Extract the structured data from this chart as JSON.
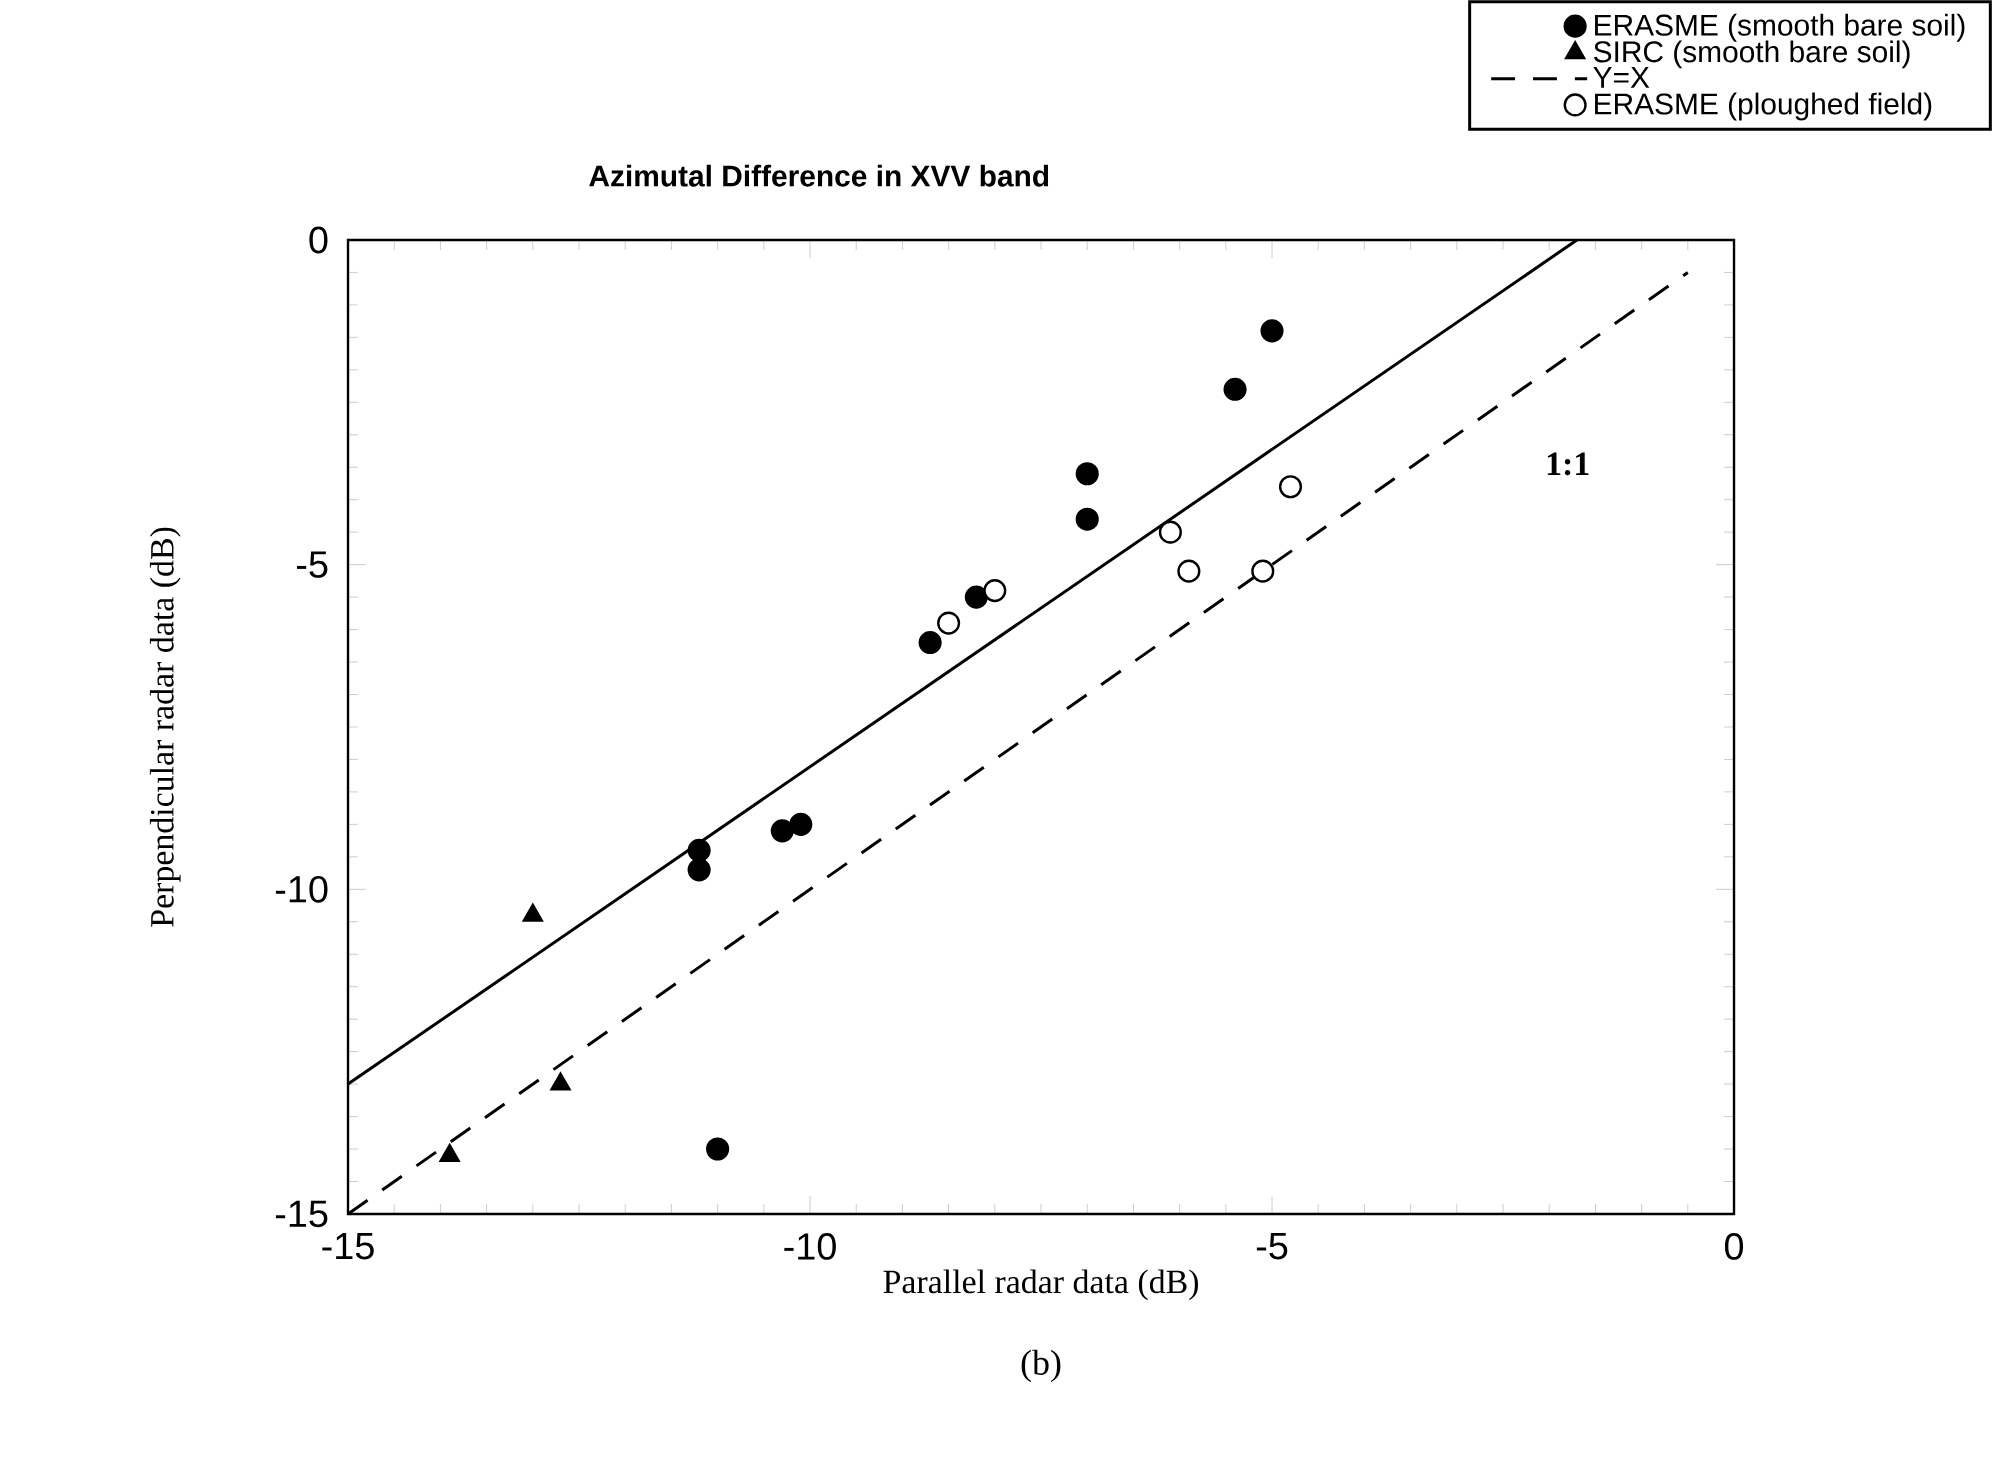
{
  "chart_data": {
    "type": "scatter",
    "title": "Azimutal  Difference  in  XVV  band",
    "xlabel": "Parallel radar data (dB)",
    "ylabel": "Perpendicular radar data (dB)",
    "xlim": [
      -15,
      0
    ],
    "ylim": [
      -15,
      0
    ],
    "xticks": [
      -15,
      -10,
      -5,
      0
    ],
    "yticks": [
      -15,
      -10,
      -5,
      0
    ],
    "grid": false,
    "legend": "top right",
    "series": [
      {
        "name": "ERASME (smooth bare soil)",
        "marker": "circle",
        "color": "#000000",
        "x": [
          -5.0,
          -5.4,
          -7.0,
          -7.0,
          -8.2,
          -8.7,
          -10.1,
          -10.3,
          -11.2,
          -11.2,
          -11.0
        ],
        "values": [
          -1.4,
          -2.3,
          -3.6,
          -4.3,
          -5.5,
          -6.2,
          -9.0,
          -9.1,
          -9.4,
          -9.7,
          -14.0
        ]
      },
      {
        "name": "SIRC (smooth bare soil)",
        "marker": "triangle",
        "color": "#000000",
        "x": [
          -13.0,
          -12.7,
          -13.9
        ],
        "values": [
          -10.4,
          -13.0,
          -14.1
        ]
      },
      {
        "name": "Y=X",
        "type": "line",
        "marker": "none",
        "line_style": "dashed",
        "color": "#000000",
        "x": [
          -15,
          -0.5
        ],
        "values": [
          -15,
          -0.5
        ]
      },
      {
        "name": "ERASME (ploughed field)",
        "marker": "circle",
        "color": "#ffffff",
        "x": [
          -8.0,
          -8.5,
          -6.1,
          -5.9,
          -5.1,
          -4.8
        ],
        "values": [
          -5.4,
          -5.9,
          -4.5,
          -5.1,
          -5.1,
          -3.8
        ]
      },
      {
        "type": "line",
        "marker": "none",
        "line_style": "solid",
        "color": "#000000",
        "x": [
          -15,
          -1.7
        ],
        "values": [
          -13.0,
          0
        ]
      }
    ],
    "annotations": [
      "1:1",
      "(b)"
    ]
  }
}
